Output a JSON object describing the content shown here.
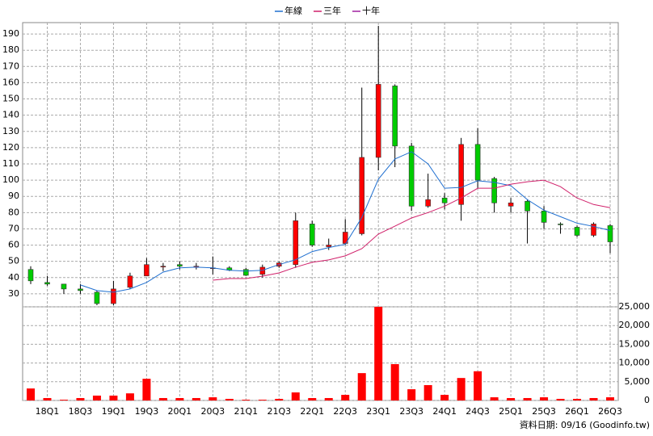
{
  "chart_data": [
    {
      "type": "candlestick",
      "categories": [
        null,
        "18Q1",
        null,
        "18Q3",
        null,
        "19Q1",
        null,
        "19Q3",
        null,
        "20Q1",
        null,
        "20Q3",
        null,
        "21Q1",
        null,
        "21Q3",
        null,
        "22Q1",
        null,
        "22Q3",
        null,
        "23Q1",
        null,
        "23Q3",
        null,
        "24Q1",
        null,
        "24Q3",
        null,
        "25Q1",
        null,
        "25Q3",
        null,
        "26Q1",
        null,
        "26Q3"
      ],
      "open": [
        45,
        37,
        36,
        33,
        31,
        24,
        34,
        41,
        47,
        48,
        46.5,
        46,
        46,
        45,
        42,
        47,
        48,
        73,
        59,
        61,
        67,
        114,
        158,
        121,
        84,
        89,
        85,
        122,
        101,
        84,
        87,
        81,
        73,
        71,
        66,
        72
      ],
      "close": [
        38,
        36,
        33,
        32,
        24,
        33,
        41,
        48,
        47,
        47,
        47,
        46,
        44.5,
        41.4,
        46.4,
        49,
        75,
        60,
        60,
        68,
        114,
        159,
        121,
        84,
        88,
        86,
        122,
        100,
        86,
        86,
        81,
        74,
        72.5,
        66,
        73,
        62
      ],
      "high": [
        47,
        41,
        36,
        36,
        32,
        38,
        43,
        52,
        49,
        50,
        49,
        53,
        47,
        46,
        48,
        50,
        80,
        75,
        64,
        76,
        157,
        195,
        159,
        123,
        104,
        92,
        126,
        132,
        102,
        89,
        88,
        84,
        74,
        72,
        74,
        73
      ],
      "low": [
        36,
        35,
        30,
        30,
        23,
        23,
        33,
        41,
        44,
        45,
        45,
        42,
        44,
        41,
        40,
        46,
        46,
        59,
        57,
        60,
        66,
        106,
        108,
        81,
        83,
        82,
        75,
        95,
        80,
        80,
        61,
        70,
        67,
        65,
        65,
        55
      ],
      "up_color": "#ff0000",
      "down_color": "#00cc00",
      "series": [
        {
          "name": "年線",
          "color": "#1f6fd0",
          "values": [
            null,
            null,
            null,
            35.5,
            32,
            31,
            33,
            37,
            43.4,
            46,
            46.4,
            46,
            44.5,
            44,
            44.5,
            48,
            51,
            56,
            58.5,
            60.5,
            77,
            100.6,
            113,
            117.5,
            110,
            95,
            95.5,
            99.6,
            98.6,
            96.6,
            88,
            81.5,
            77.5,
            73.5,
            71.5,
            69
          ]
        },
        {
          "name": "三年",
          "color": "#d0206a",
          "values": [
            null,
            null,
            null,
            null,
            null,
            null,
            null,
            null,
            null,
            null,
            null,
            38.4,
            39.4,
            39.4,
            40.9,
            42.9,
            46.4,
            49.4,
            50.9,
            53.4,
            57.8,
            66.8,
            71.7,
            76.7,
            80,
            84,
            89,
            95,
            95,
            97.5,
            99,
            100,
            96,
            89,
            85,
            83
          ]
        },
        {
          "name": "十年",
          "color": "#a020a0",
          "values": [
            null,
            null,
            null,
            null,
            null,
            null,
            null,
            null,
            null,
            null,
            null,
            null,
            null,
            null,
            null,
            null,
            null,
            null,
            null,
            null,
            null,
            null,
            null,
            null,
            null,
            null,
            null,
            null,
            null,
            null,
            null,
            null,
            null,
            null,
            null,
            null
          ]
        }
      ],
      "ylim": [
        22,
        197
      ],
      "yticks": [
        30,
        40,
        50,
        60,
        70,
        80,
        90,
        100,
        110,
        120,
        130,
        140,
        150,
        160,
        170,
        180,
        190
      ],
      "grid": true
    },
    {
      "type": "bar",
      "values": [
        3200,
        650,
        200,
        650,
        1300,
        1300,
        1900,
        5800,
        650,
        650,
        650,
        850,
        430,
        200,
        200,
        430,
        2150,
        650,
        650,
        1500,
        7300,
        25000,
        9700,
        3000,
        4100,
        1500,
        6000,
        7800,
        850,
        650,
        650,
        850,
        430,
        430,
        650,
        850
      ],
      "color": "#ff0000",
      "ylim": [
        0,
        25000
      ],
      "yticks": [
        0,
        {
          "value": 5000,
          "label": "5,000"
        },
        {
          "value": 10000,
          "label": "10,000"
        },
        {
          "value": 15000,
          "label": "15,000"
        },
        {
          "value": 20000,
          "label": "20,000"
        },
        {
          "value": 25000,
          "label": "25,000"
        }
      ],
      "grid": true,
      "annotation": "資料日期: 09/16 (Goodinfo.tw)"
    }
  ]
}
